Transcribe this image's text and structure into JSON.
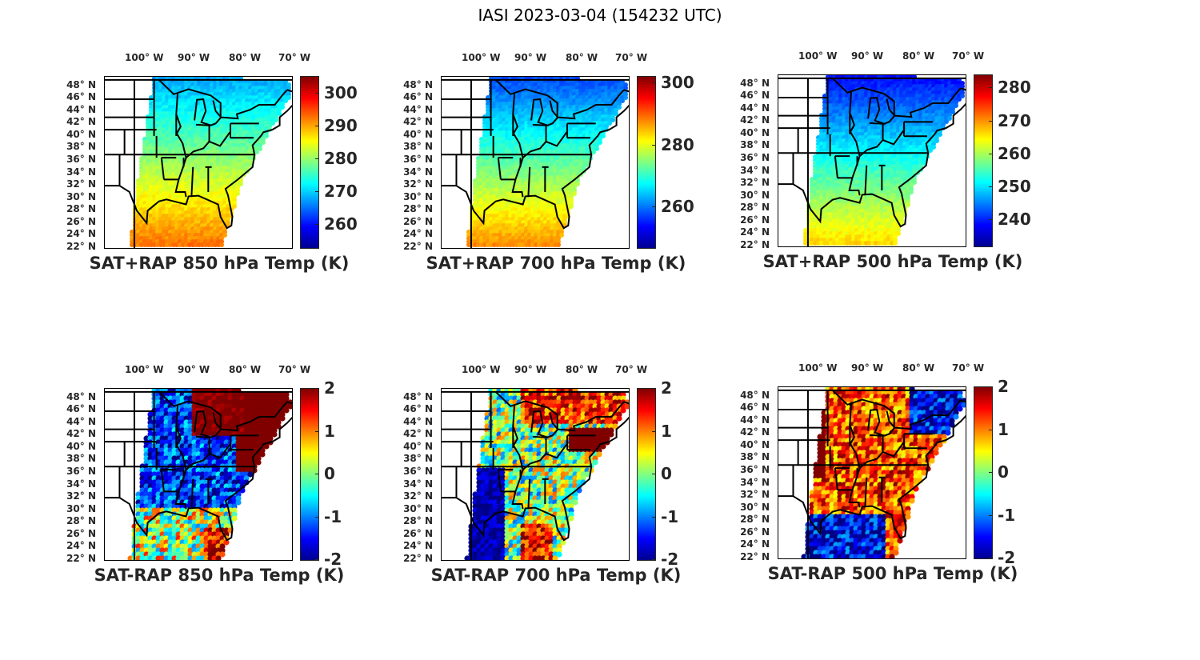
{
  "suptitle": "IASI 2023-03-04 (154232 UTC)",
  "chart_data": [
    {
      "type": "heatmap",
      "title": "SAT+RAP 850 hPa Temp (K)",
      "lon_ticks": [
        "100° W",
        "90° W",
        "80° W",
        "70° W"
      ],
      "lat_ticks": [
        "48° N",
        "46° N",
        "44° N",
        "42° N",
        "40° N",
        "38° N",
        "36° N",
        "34° N",
        "32° N",
        "30° N",
        "28° N",
        "26° N",
        "24° N",
        "22° N"
      ],
      "colorbar": {
        "ticks": [
          260,
          270,
          280,
          290,
          300
        ],
        "range": [
          253,
          305
        ],
        "colormap": "jet"
      },
      "field": {
        "north_value": 268,
        "south_value": 293,
        "description": "Temperature increasing from north (~265-270 K) to south (~290-295 K)"
      }
    },
    {
      "type": "heatmap",
      "title": "SAT+RAP 700 hPa Temp (K)",
      "lon_ticks": [
        "100° W",
        "90° W",
        "80° W",
        "70° W"
      ],
      "lat_ticks": [
        "48° N",
        "46° N",
        "44° N",
        "42° N",
        "40° N",
        "38° N",
        "36° N",
        "34° N",
        "32° N",
        "30° N",
        "28° N",
        "26° N",
        "24° N",
        "22° N"
      ],
      "colorbar": {
        "ticks": [
          260,
          280,
          300
        ],
        "range": [
          247,
          302
        ],
        "colormap": "jet"
      },
      "field": {
        "north_value": 260,
        "south_value": 287,
        "description": "Temperature increasing from north (~258-262 K) to south (~285-290 K)"
      }
    },
    {
      "type": "heatmap",
      "title": "SAT+RAP 500 hPa Temp (K)",
      "lon_ticks": [
        "100° W",
        "90° W",
        "80° W",
        "70° W"
      ],
      "lat_ticks": [
        "48° N",
        "46° N",
        "44° N",
        "42° N",
        "40° N",
        "38° N",
        "36° N",
        "34° N",
        "32° N",
        "30° N",
        "28° N",
        "26° N",
        "24° N",
        "22° N"
      ],
      "colorbar": {
        "ticks": [
          240,
          250,
          260,
          270,
          280
        ],
        "range": [
          232,
          284
        ],
        "colormap": "jet"
      },
      "field": {
        "north_value": 240,
        "south_value": 266,
        "description": "Temperature increasing from north (~238-245 K) to south (~263-268 K)"
      }
    },
    {
      "type": "heatmap",
      "title": "SAT-RAP 850 hPa Temp (K)",
      "lon_ticks": [
        "100° W",
        "90° W",
        "80° W",
        "70° W"
      ],
      "lat_ticks": [
        "48° N",
        "46° N",
        "44° N",
        "42° N",
        "40° N",
        "38° N",
        "36° N",
        "34° N",
        "32° N",
        "30° N",
        "28° N",
        "26° N",
        "24° N",
        "22° N"
      ],
      "colorbar": {
        "ticks": [
          -2,
          -1,
          0,
          1,
          2
        ],
        "range": [
          -2,
          2
        ],
        "colormap": "jet"
      },
      "field": {
        "description": "Warm (+2) over Great Lakes/Michigan and mid-Atlantic coast; cold (-1 to -2) over southern plains and southeast; mixed near Gulf"
      }
    },
    {
      "type": "heatmap",
      "title": "SAT-RAP 700 hPa Temp (K)",
      "lon_ticks": [
        "100° W",
        "90° W",
        "80° W",
        "70° W"
      ],
      "lat_ticks": [
        "48° N",
        "46° N",
        "44° N",
        "42° N",
        "40° N",
        "38° N",
        "36° N",
        "34° N",
        "32° N",
        "30° N",
        "28° N",
        "26° N",
        "24° N",
        "22° N"
      ],
      "colorbar": {
        "ticks": [
          -2,
          -1,
          0,
          1,
          2
        ],
        "range": [
          -2,
          2
        ],
        "colormap": "jet"
      },
      "field": {
        "description": "Warm (+1 to +2) over Great Lakes, Pennsylvania and east coast and a band in the Gulf; cold (-2) over Texas/southern plains"
      }
    },
    {
      "type": "heatmap",
      "title": "SAT-RAP 500 hPa Temp (K)",
      "lon_ticks": [
        "100° W",
        "90° W",
        "80° W",
        "70° W"
      ],
      "lat_ticks": [
        "48° N",
        "46° N",
        "44° N",
        "42° N",
        "40° N",
        "38° N",
        "36° N",
        "34° N",
        "32° N",
        "30° N",
        "28° N",
        "26° N",
        "24° N",
        "22° N"
      ],
      "colorbar": {
        "ticks": [
          -2,
          -1,
          0,
          1,
          2
        ],
        "range": [
          -2,
          2
        ],
        "colormap": "jet"
      },
      "field": {
        "description": "Warm (+1 to +2) over central US and plains; cold (-2) over Gulf of Mexico and northeast"
      }
    }
  ]
}
